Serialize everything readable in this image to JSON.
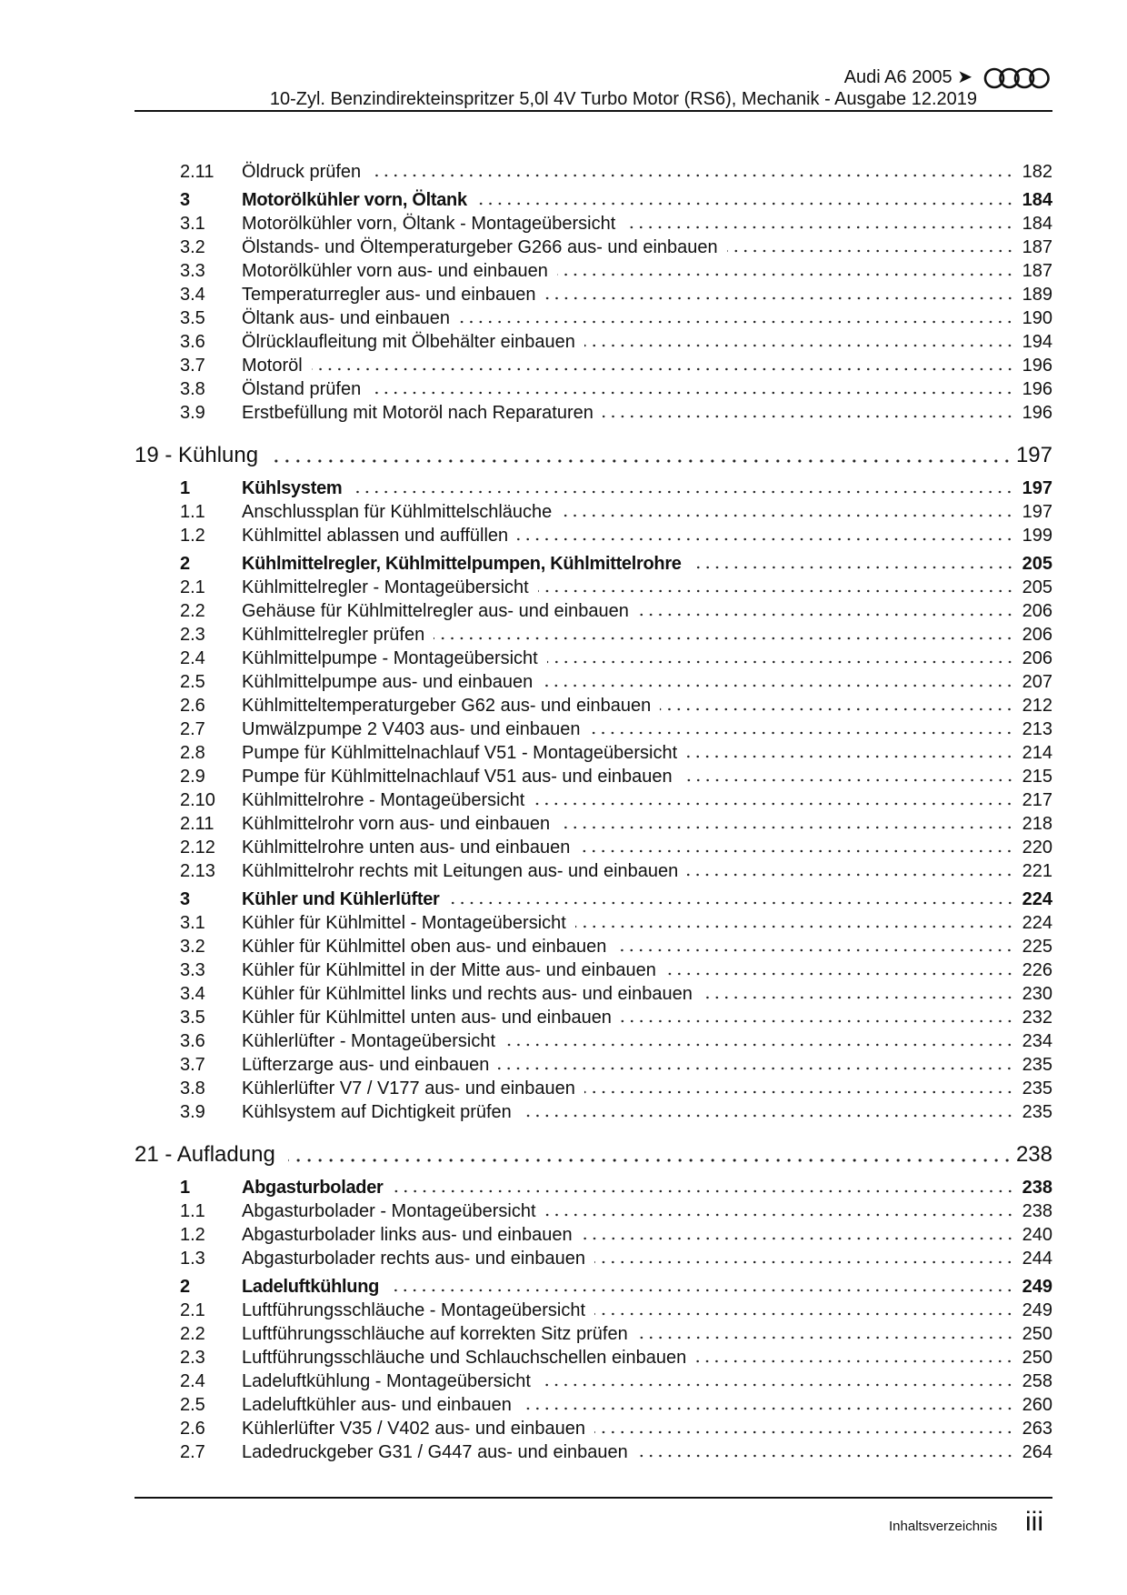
{
  "header": {
    "model": "Audi A6 2005 ➤",
    "title": "10-Zyl. Benzindirekteinspritzer 5,0l 4V Turbo Motor (RS6), Mechanik - Ausgabe 12.2019",
    "logo": "audi-rings-logo"
  },
  "toc": [
    {
      "level": "sub",
      "num": "2.11",
      "title": "Öldruck prüfen",
      "page": "182"
    },
    {
      "level": "sec",
      "num": "3",
      "title": "Motorölkühler vorn, Öltank",
      "page": "184"
    },
    {
      "level": "sub",
      "num": "3.1",
      "title": "Motorölkühler vorn, Öltank - Montageübersicht",
      "page": "184"
    },
    {
      "level": "sub",
      "num": "3.2",
      "title": "Ölstands- und Öltemperaturgeber G266 aus- und einbauen",
      "page": "187"
    },
    {
      "level": "sub",
      "num": "3.3",
      "title": "Motorölkühler vorn aus- und einbauen",
      "page": "187"
    },
    {
      "level": "sub",
      "num": "3.4",
      "title": "Temperaturregler aus- und einbauen",
      "page": "189"
    },
    {
      "level": "sub",
      "num": "3.5",
      "title": "Öltank aus- und einbauen",
      "page": "190"
    },
    {
      "level": "sub",
      "num": "3.6",
      "title": "Ölrücklaufleitung mit Ölbehälter einbauen",
      "page": "194"
    },
    {
      "level": "sub",
      "num": "3.7",
      "title": "Motoröl",
      "page": "196"
    },
    {
      "level": "sub",
      "num": "3.8",
      "title": "Ölstand prüfen",
      "page": "196"
    },
    {
      "level": "sub",
      "num": "3.9",
      "title": "Erstbefüllung mit Motoröl nach Reparaturen",
      "page": "196"
    },
    {
      "level": "chap",
      "num": "",
      "title": "19 - Kühlung",
      "page": "197"
    },
    {
      "level": "sec",
      "num": "1",
      "title": "Kühlsystem",
      "page": "197"
    },
    {
      "level": "sub",
      "num": "1.1",
      "title": "Anschlussplan für Kühlmittelschläuche",
      "page": "197"
    },
    {
      "level": "sub",
      "num": "1.2",
      "title": "Kühlmittel ablassen und auffüllen",
      "page": "199"
    },
    {
      "level": "sec",
      "num": "2",
      "title": "Kühlmittelregler, Kühlmittelpumpen, Kühlmittelrohre",
      "page": "205"
    },
    {
      "level": "sub",
      "num": "2.1",
      "title": "Kühlmittelregler - Montageübersicht",
      "page": "205"
    },
    {
      "level": "sub",
      "num": "2.2",
      "title": "Gehäuse für Kühlmittelregler aus- und einbauen",
      "page": "206"
    },
    {
      "level": "sub",
      "num": "2.3",
      "title": "Kühlmittelregler prüfen",
      "page": "206"
    },
    {
      "level": "sub",
      "num": "2.4",
      "title": "Kühlmittelpumpe - Montageübersicht",
      "page": "206"
    },
    {
      "level": "sub",
      "num": "2.5",
      "title": "Kühlmittelpumpe aus- und einbauen",
      "page": "207"
    },
    {
      "level": "sub",
      "num": "2.6",
      "title": "Kühlmitteltemperaturgeber G62 aus- und einbauen",
      "page": "212"
    },
    {
      "level": "sub",
      "num": "2.7",
      "title": "Umwälzpumpe 2 V403 aus- und einbauen",
      "page": "213"
    },
    {
      "level": "sub",
      "num": "2.8",
      "title": "Pumpe für Kühlmittelnachlauf V51 - Montageübersicht",
      "page": "214"
    },
    {
      "level": "sub",
      "num": "2.9",
      "title": "Pumpe für Kühlmittelnachlauf V51 aus- und einbauen",
      "page": "215"
    },
    {
      "level": "sub",
      "num": "2.10",
      "title": "Kühlmittelrohre - Montageübersicht",
      "page": "217"
    },
    {
      "level": "sub",
      "num": "2.11",
      "title": "Kühlmittelrohr vorn aus- und einbauen",
      "page": "218"
    },
    {
      "level": "sub",
      "num": "2.12",
      "title": "Kühlmittelrohre unten aus- und einbauen",
      "page": "220"
    },
    {
      "level": "sub",
      "num": "2.13",
      "title": "Kühlmittelrohr rechts mit Leitungen aus- und einbauen",
      "page": "221"
    },
    {
      "level": "sec",
      "num": "3",
      "title": "Kühler und Kühlerlüfter",
      "page": "224"
    },
    {
      "level": "sub",
      "num": "3.1",
      "title": "Kühler für Kühlmittel - Montageübersicht",
      "page": "224"
    },
    {
      "level": "sub",
      "num": "3.2",
      "title": "Kühler für Kühlmittel oben aus- und einbauen",
      "page": "225"
    },
    {
      "level": "sub",
      "num": "3.3",
      "title": "Kühler für Kühlmittel in der Mitte aus- und einbauen",
      "page": "226"
    },
    {
      "level": "sub",
      "num": "3.4",
      "title": "Kühler für Kühlmittel links und rechts aus- und einbauen",
      "page": "230"
    },
    {
      "level": "sub",
      "num": "3.5",
      "title": "Kühler für Kühlmittel unten aus- und einbauen",
      "page": "232"
    },
    {
      "level": "sub",
      "num": "3.6",
      "title": "Kühlerlüfter - Montageübersicht",
      "page": "234"
    },
    {
      "level": "sub",
      "num": "3.7",
      "title": "Lüfterzarge aus- und einbauen",
      "page": "235"
    },
    {
      "level": "sub",
      "num": "3.8",
      "title": "Kühlerlüfter V7 / V177 aus- und einbauen",
      "page": "235"
    },
    {
      "level": "sub",
      "num": "3.9",
      "title": "Kühlsystem auf Dichtigkeit prüfen",
      "page": "235"
    },
    {
      "level": "chap",
      "num": "",
      "title": "21 - Aufladung",
      "page": "238"
    },
    {
      "level": "sec",
      "num": "1",
      "title": "Abgasturbolader",
      "page": "238"
    },
    {
      "level": "sub",
      "num": "1.1",
      "title": "Abgasturbolader - Montageübersicht",
      "page": "238"
    },
    {
      "level": "sub",
      "num": "1.2",
      "title": "Abgasturbolader links aus- und einbauen",
      "page": "240"
    },
    {
      "level": "sub",
      "num": "1.3",
      "title": "Abgasturbolader rechts aus- und einbauen",
      "page": "244"
    },
    {
      "level": "sec",
      "num": "2",
      "title": "Ladeluftkühlung",
      "page": "249"
    },
    {
      "level": "sub",
      "num": "2.1",
      "title": "Luftführungsschläuche - Montageübersicht",
      "page": "249"
    },
    {
      "level": "sub",
      "num": "2.2",
      "title": "Luftführungsschläuche auf korrekten Sitz prüfen",
      "page": "250"
    },
    {
      "level": "sub",
      "num": "2.3",
      "title": "Luftführungsschläuche und Schlauchschellen einbauen",
      "page": "250"
    },
    {
      "level": "sub",
      "num": "2.4",
      "title": "Ladeluftkühlung - Montageübersicht",
      "page": "258"
    },
    {
      "level": "sub",
      "num": "2.5",
      "title": "Ladeluftkühler aus- und einbauen",
      "page": "260"
    },
    {
      "level": "sub",
      "num": "2.6",
      "title": "Kühlerlüfter V35 / V402 aus- und einbauen",
      "page": "263"
    },
    {
      "level": "sub",
      "num": "2.7",
      "title": "Ladedruckgeber G31 / G447 aus- und einbauen",
      "page": "264"
    }
  ],
  "footer": {
    "label": "Inhaltsverzeichnis",
    "page": "iii"
  }
}
